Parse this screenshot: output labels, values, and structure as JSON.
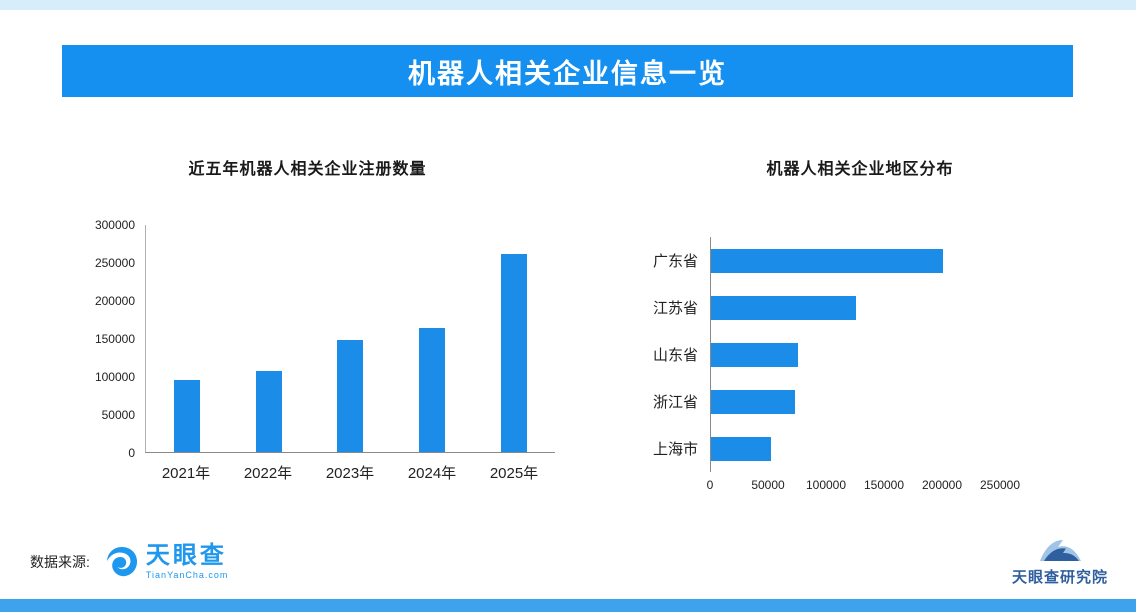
{
  "header": {
    "title": "机器人相关企业信息一览"
  },
  "chart_data": [
    {
      "type": "bar",
      "orientation": "vertical",
      "title": "近五年机器人相关企业注册数量",
      "categories": [
        "2021年",
        "2022年",
        "2023年",
        "2024年",
        "2025年"
      ],
      "values": [
        95000,
        106000,
        148000,
        163000,
        260000
      ],
      "xlabel": "",
      "ylabel": "",
      "ylim": [
        0,
        300000
      ],
      "yticks": [
        0,
        50000,
        100000,
        150000,
        200000,
        250000,
        300000
      ],
      "grid": false,
      "legend": "none"
    },
    {
      "type": "bar",
      "orientation": "horizontal",
      "title": "机器人相关企业地区分布",
      "categories": [
        "广东省",
        "江苏省",
        "山东省",
        "浙江省",
        "上海市"
      ],
      "values": [
        200000,
        125000,
        75000,
        72000,
        52000
      ],
      "xlabel": "",
      "ylabel": "",
      "xlim": [
        0,
        250000
      ],
      "xticks": [
        0,
        50000,
        100000,
        150000,
        200000,
        250000
      ],
      "grid": false,
      "legend": "none"
    }
  ],
  "footer": {
    "source_label": "数据来源:",
    "brand_name": "天眼查",
    "brand_domain": "TianYanCha.com",
    "research_name": "天眼查研究院"
  },
  "colors": {
    "banner": "#1590f0",
    "bar": "#1b8de9",
    "top_strip": "#d7edfb",
    "bottom_strip": "#3fa2ec",
    "brand": "#1e97ee",
    "research": "#2f5f9e"
  }
}
